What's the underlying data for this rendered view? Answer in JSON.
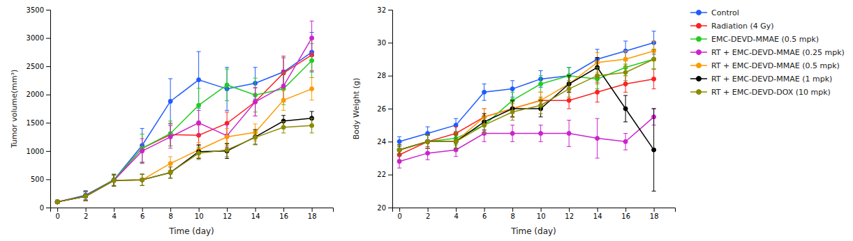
{
  "chart_data": [
    {
      "type": "line",
      "x_label": "Time (day)",
      "y_label": "Tumor volume(mm³)",
      "x": [
        0,
        2,
        4,
        6,
        8,
        10,
        12,
        14,
        16,
        18
      ],
      "xlim": [
        -0.5,
        19.5
      ],
      "xticks": [
        0,
        2,
        4,
        6,
        8,
        10,
        12,
        14,
        16,
        18
      ],
      "ylim": [
        0,
        3500
      ],
      "yticks": [
        0,
        500,
        1000,
        1500,
        2000,
        2500,
        3000,
        3500
      ],
      "grid": false,
      "marker": "circle",
      "series": [
        {
          "name": "Control",
          "color": "#1F5BFF",
          "values": [
            100,
            220,
            490,
            1100,
            1880,
            2260,
            2100,
            2200,
            2400,
            2750
          ],
          "errors": [
            30,
            80,
            100,
            300,
            400,
            500,
            380,
            280,
            250,
            350
          ]
        },
        {
          "name": "Radiation (4 Gy)",
          "color": "#FF2020",
          "values": [
            100,
            200,
            480,
            1050,
            1290,
            1280,
            1490,
            1870,
            2380,
            2700
          ],
          "errors": [
            30,
            80,
            100,
            250,
            200,
            180,
            200,
            250,
            300,
            280
          ]
        },
        {
          "name": "EMC-DEVD-MMAE (0.5 mpk)",
          "color": "#22CC22",
          "values": [
            100,
            200,
            490,
            1050,
            1310,
            1810,
            2170,
            1990,
            2100,
            2600
          ],
          "errors": [
            30,
            80,
            100,
            250,
            220,
            300,
            280,
            300,
            280,
            300
          ]
        },
        {
          "name": "RT + EMC-DEVD-MMAE (0.25 mpk)",
          "color": "#CC22CC",
          "values": [
            100,
            200,
            480,
            1000,
            1250,
            1500,
            1270,
            1870,
            2150,
            3000
          ],
          "errors": [
            30,
            80,
            100,
            220,
            200,
            220,
            200,
            250,
            280,
            300
          ]
        },
        {
          "name": "RT + EMC-DEVD-MMAE (0.5 mpk)",
          "color": "#FF9900",
          "values": [
            100,
            200,
            480,
            490,
            780,
            1020,
            1250,
            1330,
            1900,
            2100
          ],
          "errors": [
            30,
            80,
            100,
            100,
            120,
            130,
            150,
            150,
            180,
            200
          ]
        },
        {
          "name": "RT + EMC-DEVD-MMAE (1 mpk)",
          "color": "#000000",
          "values": [
            100,
            200,
            480,
            490,
            620,
            990,
            1000,
            1250,
            1530,
            1580
          ],
          "errors": [
            30,
            80,
            100,
            100,
            100,
            120,
            130,
            130,
            100,
            120
          ]
        },
        {
          "name": "RT + EMC-DEVD-DOX (10 mpk)",
          "color": "#8B8B00",
          "values": [
            100,
            200,
            480,
            490,
            620,
            960,
            1020,
            1240,
            1420,
            1450
          ],
          "errors": [
            30,
            80,
            100,
            100,
            100,
            110,
            120,
            130,
            100,
            130
          ]
        }
      ]
    },
    {
      "type": "line",
      "x_label": "Time (day)",
      "y_label": "Body Weight (g)",
      "x": [
        0,
        2,
        4,
        6,
        8,
        10,
        12,
        14,
        16,
        18
      ],
      "xlim": [
        -0.5,
        19.5
      ],
      "xticks": [
        0,
        2,
        4,
        6,
        8,
        10,
        12,
        14,
        16,
        18
      ],
      "ylim": [
        20,
        32
      ],
      "yticks": [
        20,
        22,
        24,
        26,
        28,
        30,
        32
      ],
      "grid": false,
      "marker": "circle",
      "legend": "right",
      "series": [
        {
          "name": "Control",
          "color": "#1F5BFF",
          "values": [
            24.0,
            24.5,
            25.0,
            27.0,
            27.2,
            27.8,
            28.0,
            29.0,
            29.5,
            30.0
          ],
          "errors": [
            0.3,
            0.4,
            0.4,
            0.5,
            0.5,
            0.5,
            0.5,
            0.6,
            0.6,
            0.7
          ]
        },
        {
          "name": "Radiation (4 Gy)",
          "color": "#FF2020",
          "values": [
            23.2,
            24.0,
            24.5,
            25.5,
            26.0,
            26.5,
            26.5,
            27.0,
            27.5,
            27.8
          ],
          "errors": [
            0.3,
            0.4,
            0.4,
            0.5,
            0.5,
            0.5,
            0.5,
            0.6,
            0.5,
            0.6
          ]
        },
        {
          "name": "EMC-DEVD-MMAE (0.5 mpk)",
          "color": "#22CC22",
          "values": [
            23.5,
            24.0,
            24.2,
            25.0,
            26.5,
            27.5,
            28.0,
            27.8,
            28.5,
            29.0
          ],
          "errors": [
            0.3,
            0.4,
            0.4,
            0.5,
            0.5,
            0.5,
            0.5,
            0.6,
            0.5,
            0.6
          ]
        },
        {
          "name": "RT + EMC-DEVD-MMAE (0.25 mpk)",
          "color": "#CC22CC",
          "values": [
            22.8,
            23.3,
            23.5,
            24.5,
            24.5,
            24.5,
            24.5,
            24.2,
            24.0,
            25.5
          ],
          "errors": [
            0.4,
            0.4,
            0.4,
            0.5,
            0.5,
            0.5,
            0.8,
            1.2,
            0.5,
            0.5
          ]
        },
        {
          "name": "RT + EMC-DEVD-MMAE (0.5 mpk)",
          "color": "#FF9900",
          "values": [
            23.5,
            24.0,
            24.0,
            25.5,
            26.0,
            26.5,
            27.5,
            28.8,
            29.0,
            29.5
          ],
          "errors": [
            0.3,
            0.4,
            0.4,
            0.5,
            0.5,
            0.5,
            0.5,
            0.6,
            0.5,
            0.6
          ]
        },
        {
          "name": "RT + EMC-DEVD-MMAE (1 mpk)",
          "color": "#000000",
          "values": [
            23.5,
            24.0,
            24.0,
            25.2,
            26.0,
            26.0,
            27.5,
            28.5,
            26.0,
            23.5
          ],
          "errors": [
            0.3,
            0.4,
            0.4,
            0.5,
            0.5,
            0.5,
            0.5,
            0.6,
            0.8,
            2.5
          ]
        },
        {
          "name": "RT + EMC-DEVD-DOX (10 mpk)",
          "color": "#8B8B00",
          "values": [
            23.5,
            24.0,
            24.0,
            25.0,
            25.8,
            26.2,
            27.2,
            28.0,
            28.2,
            29.0
          ],
          "errors": [
            0.3,
            0.4,
            0.4,
            0.5,
            0.5,
            0.5,
            0.5,
            0.5,
            0.5,
            0.6
          ]
        }
      ]
    }
  ]
}
